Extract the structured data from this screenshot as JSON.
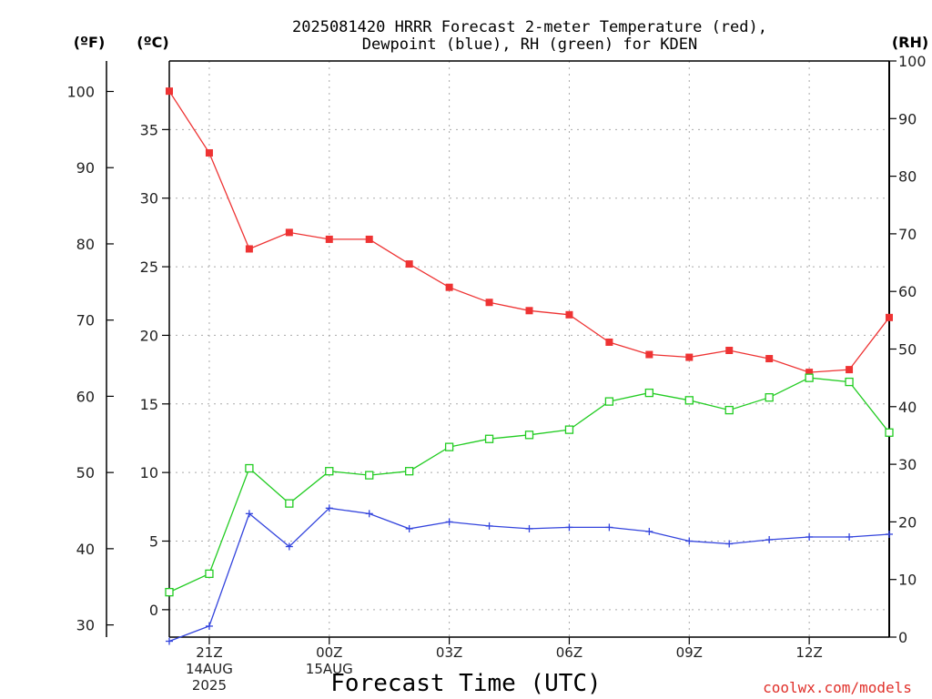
{
  "chart_data": {
    "type": "line",
    "title_lines": [
      "2025081420 HRRR Forecast 2-meter Temperature (red),",
      "Dewpoint (blue), RH (green) for KDEN"
    ],
    "units": {
      "fahrenheit": "(ºF)",
      "celsius": "(ºC)",
      "rh": "(RH)"
    },
    "xlabel": "Forecast Time (UTC)",
    "credit": "coolwx.com/models",
    "x_hours": [
      0,
      1,
      2,
      3,
      4,
      5,
      6,
      7,
      8,
      9,
      10,
      11,
      12,
      13,
      14,
      15,
      16,
      17,
      18
    ],
    "x_ticks": [
      {
        "hour": 1,
        "lines": [
          "21Z",
          "14AUG",
          "2025"
        ]
      },
      {
        "hour": 4,
        "lines": [
          "00Z",
          "15AUG"
        ]
      },
      {
        "hour": 7,
        "lines": [
          "03Z"
        ]
      },
      {
        "hour": 10,
        "lines": [
          "06Z"
        ]
      },
      {
        "hour": 13,
        "lines": [
          "09Z"
        ]
      },
      {
        "hour": 16,
        "lines": [
          "12Z"
        ]
      }
    ],
    "axes": {
      "celsius": {
        "min": -2,
        "max": 40,
        "ticks": [
          0,
          5,
          10,
          15,
          20,
          25,
          30,
          35
        ]
      },
      "fahrenheit": {
        "ticks": [
          30,
          40,
          50,
          60,
          70,
          80,
          90,
          100
        ]
      },
      "rh": {
        "min": 0,
        "max": 100,
        "ticks": [
          0,
          10,
          20,
          30,
          40,
          50,
          60,
          70,
          80,
          90,
          100
        ]
      }
    },
    "grid": true,
    "series": [
      {
        "name": "Temperature",
        "axis": "celsius",
        "color": "#ee3333",
        "marker": "filled-square",
        "values": [
          37.8,
          33.3,
          26.3,
          27.5,
          27.0,
          27.0,
          25.2,
          23.5,
          22.4,
          21.8,
          21.5,
          19.5,
          18.6,
          18.4,
          18.9,
          18.3,
          17.3,
          17.5,
          21.3
        ]
      },
      {
        "name": "Dewpoint",
        "axis": "celsius",
        "color": "#3344dd",
        "marker": "plus",
        "values": [
          -2.3,
          -1.2,
          7.0,
          4.6,
          7.4,
          7.0,
          5.9,
          6.4,
          6.1,
          5.9,
          6.0,
          6.0,
          5.7,
          5.0,
          4.8,
          5.1,
          5.3,
          5.3,
          5.5
        ]
      },
      {
        "name": "RH",
        "axis": "rh",
        "color": "#22cc22",
        "marker": "open-square",
        "values": [
          7.8,
          11.0,
          29.3,
          23.2,
          28.8,
          28.1,
          28.8,
          33.0,
          34.4,
          35.1,
          36.0,
          40.9,
          42.4,
          41.1,
          39.4,
          41.6,
          45.0,
          44.3,
          35.5
        ]
      }
    ]
  }
}
